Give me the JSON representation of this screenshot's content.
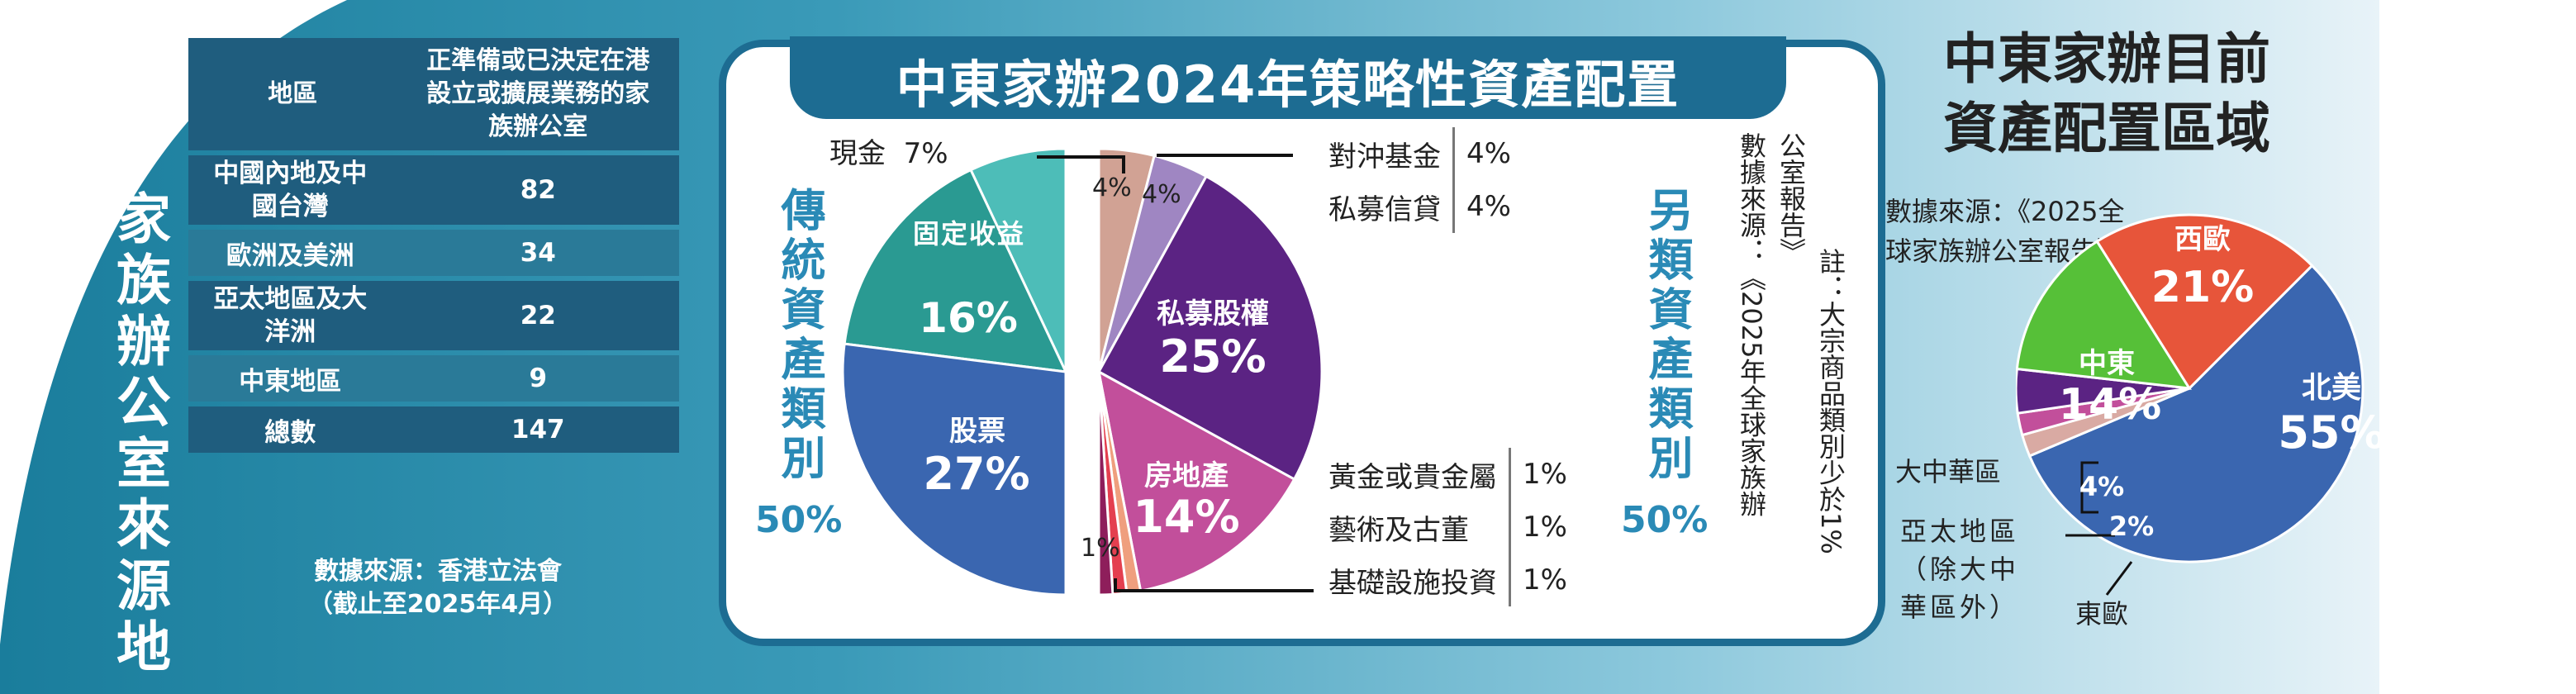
{
  "left": {
    "title": "家族辦公室來源地",
    "table": {
      "headers": [
        "地區",
        "正準備或已決定在港設立或擴展業務的家族辦公室"
      ],
      "rows": [
        {
          "region": "中國內地及中國台灣",
          "value": "82"
        },
        {
          "region": "歐洲及美洲",
          "value": "34"
        },
        {
          "region": "亞太地區及大洋洲",
          "value": "22"
        },
        {
          "region": "中東地區",
          "value": "9"
        },
        {
          "region": "總數",
          "value": "147"
        }
      ]
    },
    "source_line1": "數據來源：香港立法會",
    "source_line2": "（截止至2025年4月）"
  },
  "middle": {
    "title": "中東家辦2024年策略性資產配置",
    "traditional_title": "傳統資產類別",
    "traditional_pct": "50%",
    "alternative_title": "另類資產類別",
    "alternative_pct": "50%",
    "cash_label": "現金",
    "cash_value": "7%",
    "small_4a": "4%",
    "small_4b": "4%",
    "small_1": "1%",
    "alt_table_top": [
      {
        "name": "對沖基金",
        "value": "4%"
      },
      {
        "name": "私募信貸",
        "value": "4%"
      }
    ],
    "alt_table_bottom": [
      {
        "name": "黃金或貴金屬",
        "value": "1%"
      },
      {
        "name": "藝術及古董",
        "value": "1%"
      },
      {
        "name": "基礎設施投資",
        "value": "1%"
      }
    ],
    "note_col1": "註：大宗商品類別少於1%",
    "note_col2": "公室報告》",
    "note_col3": "數據來源：《2025年全球家族辦"
  },
  "right": {
    "title_line1": "中東家辦目前",
    "title_line2": "資產配置區域",
    "source": "數據來源：《2025全球家族辦公室報告》",
    "label_greater_china": "大中華區",
    "label_apac": "亞太地區（除大中華區外）",
    "label_east_europe": "東歐"
  },
  "chart_data": [
    {
      "type": "pie",
      "title": "中東家辦2024年策略性資產配置",
      "groups": [
        {
          "name": "傳統資產類別",
          "total": 50,
          "slices": [
            {
              "label": "現金",
              "value": 7,
              "color": "#4dbdb8"
            },
            {
              "label": "固定收益",
              "value": 16,
              "color": "#2a9a92"
            },
            {
              "label": "股票",
              "value": 27,
              "color": "#3a66b0"
            }
          ]
        },
        {
          "name": "另類資產類別",
          "total": 50,
          "slices": [
            {
              "label": "對沖基金",
              "value": 4,
              "color": "#d1a294"
            },
            {
              "label": "私募信貸",
              "value": 4,
              "color": "#9f86c2"
            },
            {
              "label": "私募股權",
              "value": 25,
              "color": "#5b2383"
            },
            {
              "label": "房地產",
              "value": 14,
              "color": "#c24f9b"
            },
            {
              "label": "黃金或貴金屬",
              "value": 1,
              "color": "#ef9f7e"
            },
            {
              "label": "藝術及古董",
              "value": 1,
              "color": "#e43f4f"
            },
            {
              "label": "基礎設施投資",
              "value": 1,
              "color": "#8e1e5b"
            }
          ]
        }
      ]
    },
    {
      "type": "pie",
      "title": "中東家辦目前資產配置區域",
      "slices": [
        {
          "label": "北美",
          "value": 55,
          "color": "#3a66b0"
        },
        {
          "label": "東歐",
          "value": 2,
          "color": "#d9aaa3"
        },
        {
          "label": "亞太地區（除大中華區外）",
          "value": 2,
          "color": "#c24f9b"
        },
        {
          "label": "大中華區",
          "value": 4,
          "color": "#5b2383"
        },
        {
          "label": "中東",
          "value": 14,
          "color": "#56c038"
        },
        {
          "label": "西歐",
          "value": 21,
          "color": "#e7553a"
        }
      ]
    }
  ]
}
